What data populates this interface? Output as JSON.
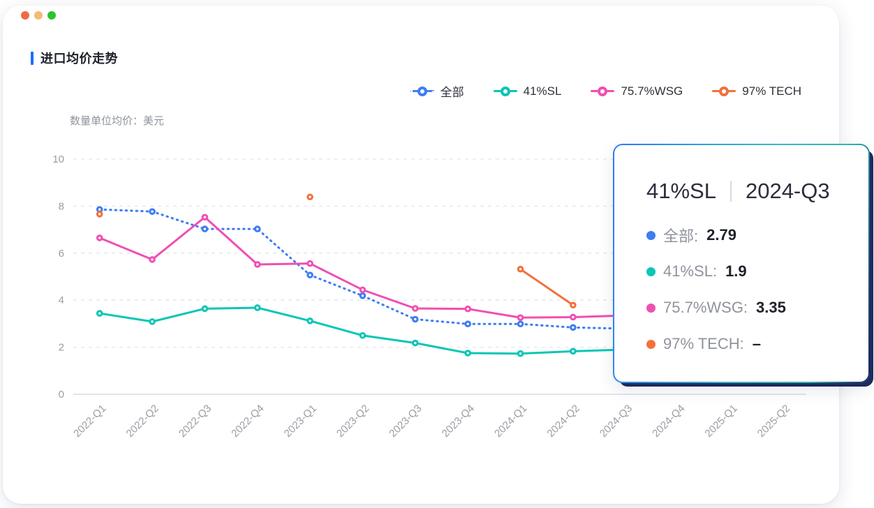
{
  "window": {
    "controls": [
      {
        "name": "close",
        "color": "#ee6a45"
      },
      {
        "name": "minimize",
        "color": "#f4ba77"
      },
      {
        "name": "maximize",
        "color": "#2ec22e"
      }
    ]
  },
  "header": {
    "title": "进口均价走势",
    "accent_color": "#1a6dff"
  },
  "chart_data": {
    "type": "line",
    "title": "进口均价走势",
    "unit_label": "数量单位均价：美元",
    "xlabel": "",
    "ylabel": "美元",
    "ylim": [
      0,
      10
    ],
    "yticks": [
      0,
      2,
      4,
      6,
      8,
      10
    ],
    "grid": true,
    "legend_position": "top-right",
    "categories": [
      "2022-Q1",
      "2022-Q2",
      "2022-Q3",
      "2022-Q4",
      "2023-Q1",
      "2023-Q2",
      "2023-Q3",
      "2023-Q4",
      "2024-Q1",
      "2024-Q2",
      "2024-Q3",
      "2024-Q4",
      "2025-Q1",
      "2025-Q2"
    ],
    "series": [
      {
        "name": "全部",
        "color": "#3e7cf4",
        "line_style": "dotted",
        "values": [
          7.86,
          7.77,
          7.03,
          7.03,
          5.07,
          4.19,
          3.19,
          2.99,
          2.99,
          2.84,
          2.79,
          null,
          null,
          null
        ]
      },
      {
        "name": "41%SL",
        "color": "#0ac6b5",
        "line_style": "solid",
        "values": [
          3.44,
          3.09,
          3.64,
          3.68,
          3.12,
          2.5,
          2.18,
          1.75,
          1.73,
          1.83,
          1.9,
          null,
          null,
          null
        ]
      },
      {
        "name": "75.7%WSG",
        "color": "#f04fb2",
        "line_style": "solid",
        "values": [
          6.65,
          5.73,
          7.53,
          5.52,
          5.56,
          4.44,
          3.65,
          3.63,
          3.26,
          3.28,
          3.35,
          null,
          null,
          null
        ]
      },
      {
        "name": "97% TECH",
        "color": "#f2713b",
        "line_style": "solid",
        "values": [
          7.66,
          null,
          null,
          null,
          8.39,
          null,
          null,
          null,
          5.32,
          3.79,
          null,
          null,
          null,
          null
        ]
      }
    ]
  },
  "tooltip": {
    "series": "41%SL",
    "period": "2024-Q3",
    "rows": [
      {
        "label": "全部:",
        "value": "2.79",
        "color": "#3e7cf4"
      },
      {
        "label": "41%SL:",
        "value": "1.9",
        "color": "#0ac6b5"
      },
      {
        "label": "75.7%WSG:",
        "value": "3.35",
        "color": "#f04fb2"
      },
      {
        "label": "97% TECH:",
        "value": "–",
        "color": "#f2713b"
      }
    ]
  }
}
